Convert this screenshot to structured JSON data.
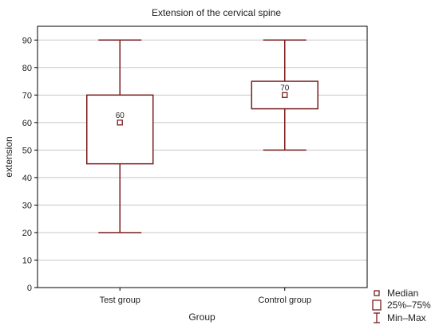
{
  "chart_data": {
    "type": "box",
    "title": "Extension of the cervical spine",
    "xlabel": "Group",
    "ylabel": "extension",
    "ylim": [
      0,
      95
    ],
    "yticks": [
      0,
      10,
      20,
      30,
      40,
      50,
      60,
      70,
      80,
      90
    ],
    "grid": true,
    "categories": [
      "Test group",
      "Control group"
    ],
    "boxes": [
      {
        "category": "Test group",
        "min": 20,
        "q1": 45,
        "median": 60,
        "q3": 70,
        "max": 90,
        "median_label": "60"
      },
      {
        "category": "Control group",
        "min": 50,
        "q1": 65,
        "median": 70,
        "q3": 75,
        "max": 90,
        "median_label": "70"
      }
    ],
    "legend": {
      "position": "bottom-right",
      "items": [
        {
          "label": "Median",
          "symbol": "small-square"
        },
        {
          "label": "25%–75%",
          "symbol": "box"
        },
        {
          "label": "Min–Max",
          "symbol": "whisker"
        }
      ]
    },
    "colors": {
      "series": "#7a1c1c",
      "grid": "#c8c8c8",
      "axis": "#000000"
    }
  }
}
